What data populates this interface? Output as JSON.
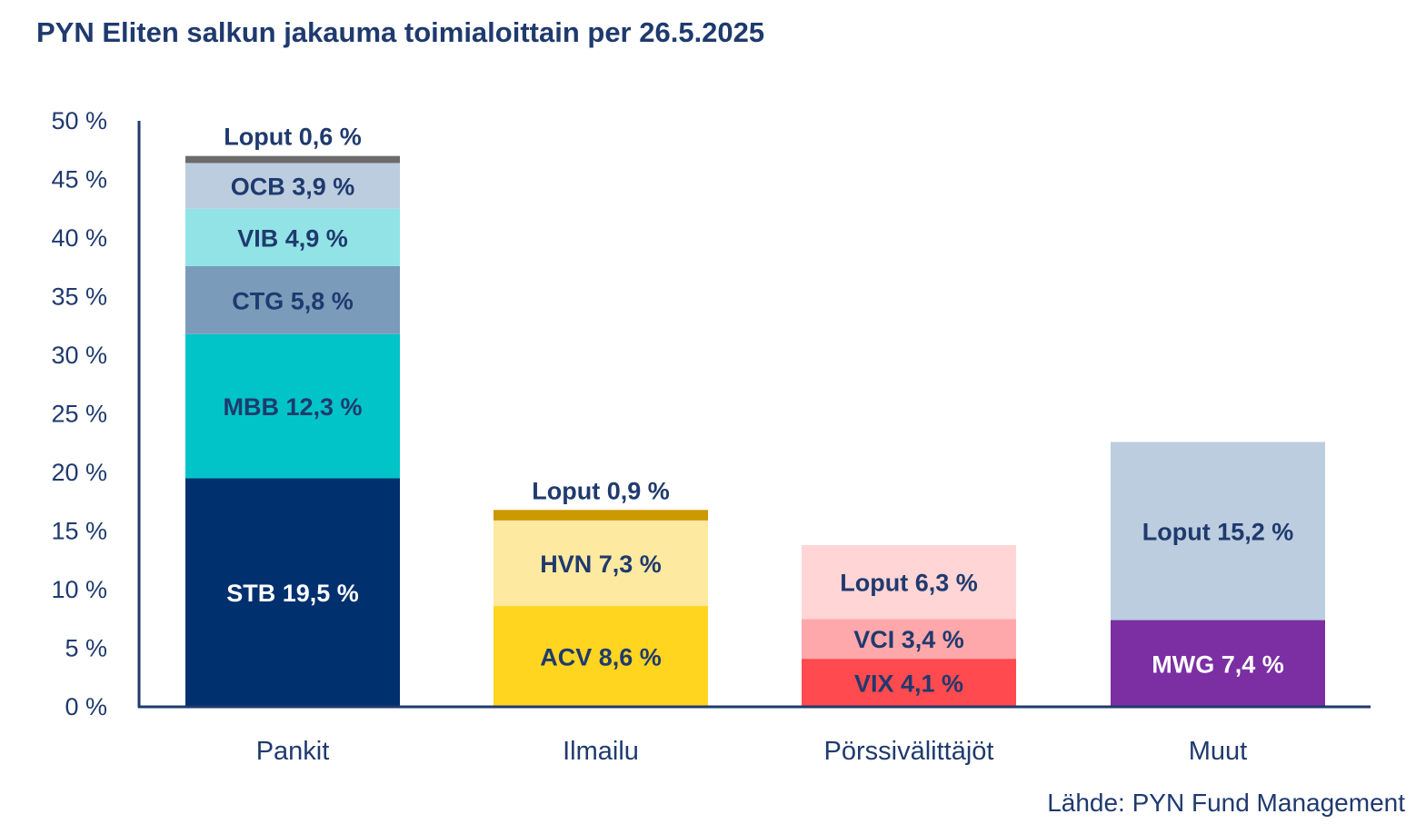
{
  "source": "Lähde: PYN Fund Management",
  "chart_data": {
    "type": "bar",
    "stacked": true,
    "title": "PYN Eliten salkun jakauma toimialoittain per 26.5.2025",
    "xlabel": "",
    "ylabel": "",
    "ylim": [
      0,
      50
    ],
    "yticks": [
      0,
      5,
      10,
      15,
      20,
      25,
      30,
      35,
      40,
      45,
      50
    ],
    "ytick_labels": [
      "0 %",
      "5 %",
      "10 %",
      "15 %",
      "20 %",
      "25 %",
      "30 %",
      "35 %",
      "40 %",
      "45 %",
      "50 %"
    ],
    "grid": false,
    "categories": [
      "Pankit",
      "Ilmailu",
      "Pörssivälittäjöt",
      "Muut"
    ],
    "stacks": [
      {
        "category": "Pankit",
        "segments": [
          {
            "name": "STB",
            "value": 19.5,
            "label": "STB 19,5 %",
            "color": "#00306e",
            "text_color": "#ffffff"
          },
          {
            "name": "MBB",
            "value": 12.3,
            "label": "MBB 12,3 %",
            "color": "#00c4c8",
            "text_color": "#1f3a6e"
          },
          {
            "name": "CTG",
            "value": 5.8,
            "label": "CTG 5,8 %",
            "color": "#7b9bbb",
            "text_color": "#1f3a6e"
          },
          {
            "name": "VIB",
            "value": 4.9,
            "label": "VIB 4,9 %",
            "color": "#92e3e6",
            "text_color": "#1f3a6e"
          },
          {
            "name": "OCB",
            "value": 3.9,
            "label": "OCB 3,9 %",
            "color": "#bccddf",
            "text_color": "#1f3a6e"
          },
          {
            "name": "Loput",
            "value": 0.6,
            "label": "Loput 0,6 %",
            "color": "#6b6b6b",
            "text_color": "#1f3a6e",
            "label_above": true
          }
        ]
      },
      {
        "category": "Ilmailu",
        "segments": [
          {
            "name": "ACV",
            "value": 8.6,
            "label": "ACV 8,6 %",
            "color": "#ffd520",
            "text_color": "#1f3a6e"
          },
          {
            "name": "HVN",
            "value": 7.3,
            "label": "HVN 7,3 %",
            "color": "#fde9a0",
            "text_color": "#1f3a6e"
          },
          {
            "name": "Loput",
            "value": 0.9,
            "label": "Loput 0,9 %",
            "color": "#cc9900",
            "text_color": "#1f3a6e",
            "label_above": true
          }
        ]
      },
      {
        "category": "Pörssivälittäjöt",
        "segments": [
          {
            "name": "VIX",
            "value": 4.1,
            "label": "VIX 4,1 %",
            "color": "#ff4a4f",
            "text_color": "#1f3a6e"
          },
          {
            "name": "VCI",
            "value": 3.4,
            "label": "VCI 3,4 %",
            "color": "#ffa8ab",
            "text_color": "#1f3a6e"
          },
          {
            "name": "Loput",
            "value": 6.3,
            "label": "Loput 6,3 %",
            "color": "#ffd5d6",
            "text_color": "#1f3a6e"
          }
        ]
      },
      {
        "category": "Muut",
        "segments": [
          {
            "name": "MWG",
            "value": 7.4,
            "label": "MWG 7,4 %",
            "color": "#7b2fa3",
            "text_color": "#ffffff"
          },
          {
            "name": "Loput",
            "value": 15.2,
            "label": "Loput 15,2 %",
            "color": "#bccddf",
            "text_color": "#1f3a6e"
          }
        ]
      }
    ]
  }
}
